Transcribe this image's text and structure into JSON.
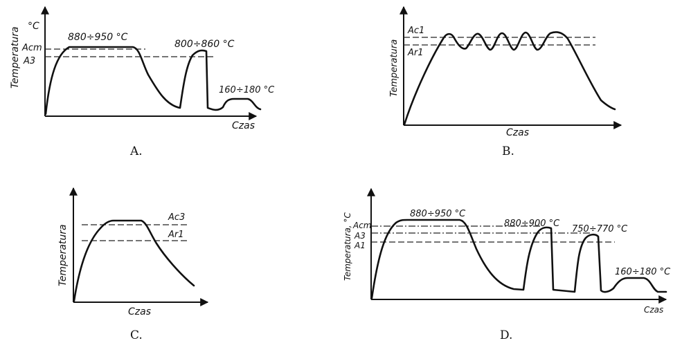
{
  "panels": {
    "a": {
      "caption": "A.",
      "y_axis_label": "Temperatura",
      "y_unit": "°C",
      "x_axis_label": "Czas",
      "line_acm": "Acm",
      "line_a3": "A3",
      "temp_range_1": "880÷950 °C",
      "temp_range_2": "800÷860 °C",
      "temp_range_3": "160÷180 °C"
    },
    "b": {
      "caption": "B.",
      "y_axis_label": "Temperatura",
      "x_axis_label": "Czas",
      "line_ac1": "Ac1",
      "line_ar1": "Ar1"
    },
    "c": {
      "caption": "C.",
      "y_axis_label": "Temperatura",
      "x_axis_label": "Czas",
      "line_ac3": "Ac3",
      "line_ar1": "Ar1"
    },
    "d": {
      "caption": "D.",
      "y_axis_label": "Temperatura, °C",
      "x_axis_label": "Czas",
      "line_acm": "Acm",
      "line_a3": "A3",
      "line_a1": "A1",
      "temp_range_1": "880÷950 °C",
      "temp_range_2": "880÷900 °C",
      "temp_range_3": "750÷770 °C",
      "temp_range_4": "160÷180 °C"
    }
  }
}
